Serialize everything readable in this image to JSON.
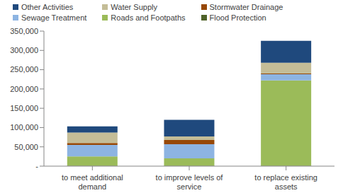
{
  "chart_data": {
    "type": "bar",
    "stacked": true,
    "grid": false,
    "legend": "top",
    "categories": [
      "to meet additional demand",
      "to improve levels of service",
      "to replace existing assets"
    ],
    "ylim": [
      0,
      350000
    ],
    "yticks": [
      {
        "value": 0,
        "label": "-"
      },
      {
        "value": 50000,
        "label": "50,000"
      },
      {
        "value": 100000,
        "label": "100,000"
      },
      {
        "value": 150000,
        "label": "150,000"
      },
      {
        "value": 200000,
        "label": "200,000"
      },
      {
        "value": 250000,
        "label": "250,000"
      },
      {
        "value": 300000,
        "label": "300,000"
      },
      {
        "value": 350000,
        "label": "350,000"
      }
    ],
    "series": [
      {
        "name": "Other Activities",
        "color": "#1F497D",
        "values": [
          16000,
          43000,
          57000
        ]
      },
      {
        "name": "Water Supply",
        "color": "#C4BD97",
        "values": [
          27000,
          9000,
          28000
        ]
      },
      {
        "name": "Stormwater Drainage",
        "color": "#974806",
        "values": [
          5000,
          11000,
          2000
        ]
      },
      {
        "name": "Sewage Treatment",
        "color": "#8DB4E2",
        "values": [
          30000,
          37000,
          16000
        ]
      },
      {
        "name": "Roads and Footpaths",
        "color": "#9BBB59",
        "values": [
          24000,
          19000,
          221000
        ]
      },
      {
        "name": "Flood Protection",
        "color": "#4F6228",
        "values": [
          1000,
          1000,
          1000
        ]
      }
    ]
  }
}
